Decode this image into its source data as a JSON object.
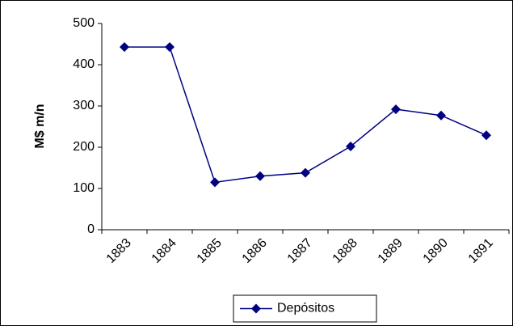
{
  "chart_data": {
    "type": "line",
    "y_label": "M$ m/n",
    "categories": [
      "1883",
      "1884",
      "1885",
      "1886",
      "1887",
      "1888",
      "1889",
      "1890",
      "1891"
    ],
    "series": [
      {
        "name": "Depósitos",
        "color": "#000080",
        "values": [
          443,
          443,
          115,
          130,
          138,
          202,
          292,
          277,
          229
        ]
      }
    ],
    "ylim": [
      0,
      500
    ],
    "yticks": [
      0,
      100,
      200,
      300,
      400,
      500
    ],
    "grid": false,
    "legend": "bottom"
  }
}
